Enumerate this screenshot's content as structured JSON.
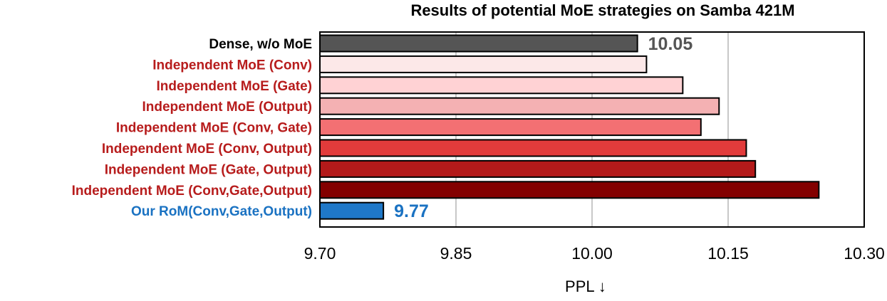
{
  "chart_data": {
    "type": "bar",
    "orientation": "horizontal",
    "title": "Results of potential MoE strategies on Samba 421M",
    "xlabel": "PPL ↓",
    "ylabel": "",
    "xlim": [
      9.7,
      10.3
    ],
    "xticks": [
      "9.70",
      "9.85",
      "10.00",
      "10.15",
      "10.30"
    ],
    "grid": "vertical",
    "categories": [
      "Dense, w/o MoE",
      "Independent MoE (Conv)",
      "Independent MoE (Gate)",
      "Independent MoE (Output)",
      "Independent MoE (Conv, Gate)",
      "Independent MoE (Conv, Output)",
      "Independent MoE (Gate, Output)",
      "Independent MoE (Conv,Gate,Output)",
      "Our RoM(Conv,Gate,Output)"
    ],
    "values": [
      10.05,
      10.06,
      10.1,
      10.14,
      10.12,
      10.17,
      10.18,
      10.25,
      9.77
    ],
    "bar_colors": [
      "#555555",
      "#fce8e8",
      "#ffd2d4",
      "#f4b1b3",
      "#f37073",
      "#e23b3b",
      "#b31a1a",
      "#830000",
      "#1f78c8"
    ],
    "label_colors": [
      "#000000",
      "#b71c1c",
      "#b71c1c",
      "#b71c1c",
      "#b71c1c",
      "#b71c1c",
      "#b71c1c",
      "#b71c1c",
      "#1a72c2"
    ],
    "data_labels": [
      {
        "index": 0,
        "text": "10.05",
        "color": "#555555"
      },
      {
        "index": 8,
        "text": "9.77",
        "color": "#1a72c2"
      }
    ]
  }
}
